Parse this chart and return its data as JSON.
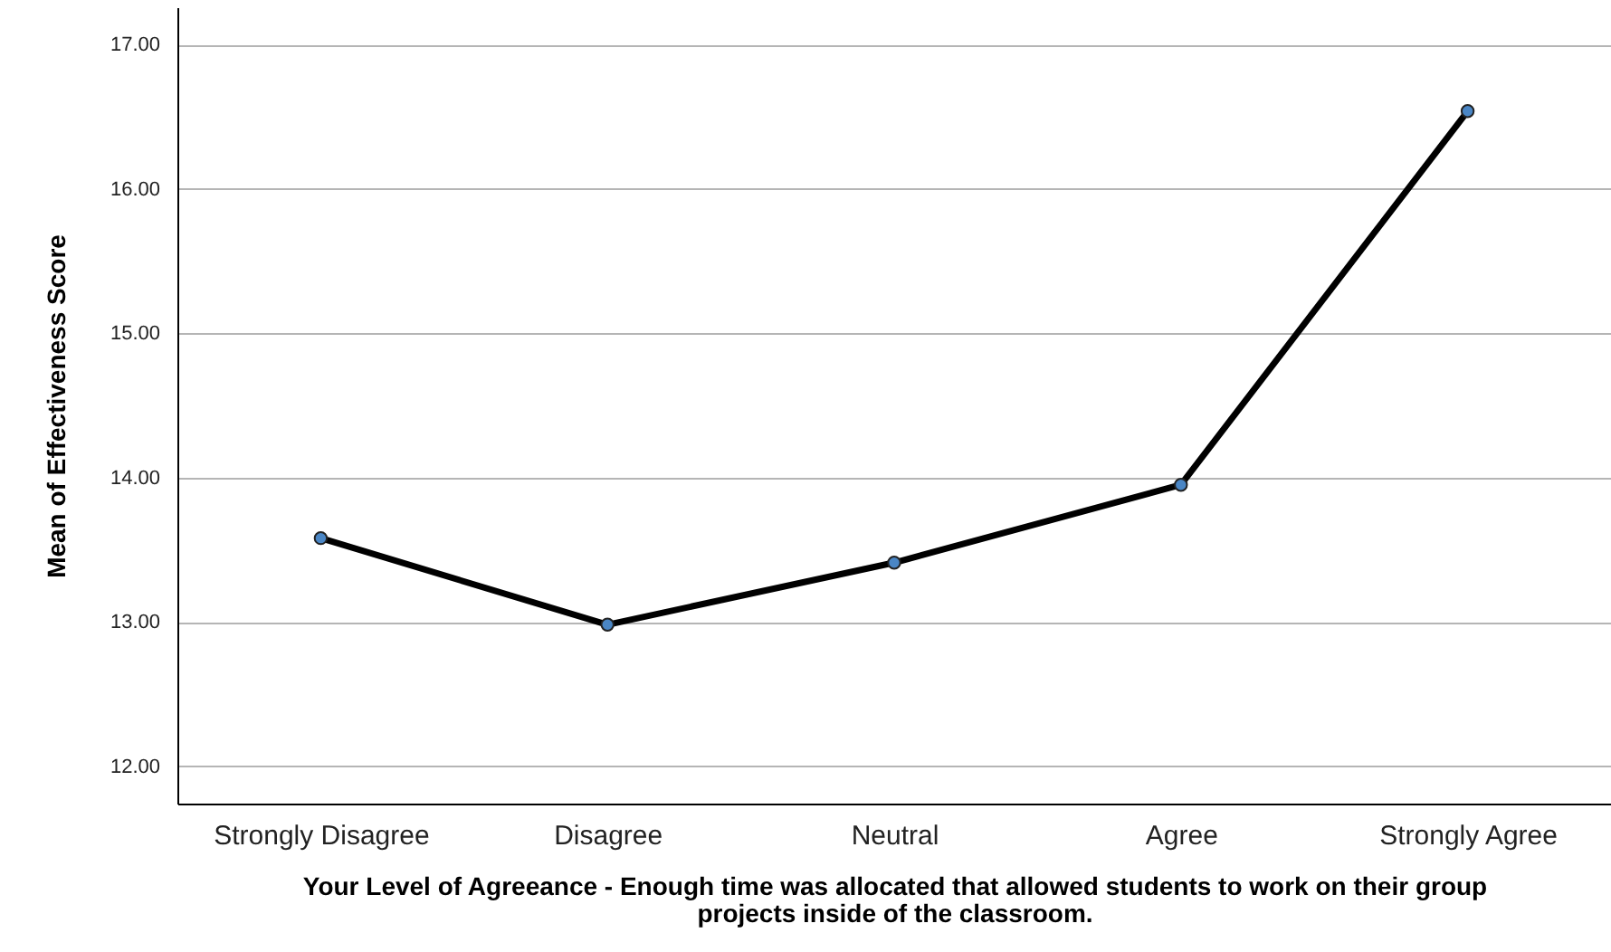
{
  "chart_data": {
    "type": "line",
    "xlabel": "Your Level of Agreeance - Enough time was allocated that allowed students to work on their group projects inside of the classroom.",
    "ylabel": "Mean of Effectiveness Score",
    "categories": [
      "Strongly Disagree",
      "Disagree",
      "Neutral",
      "Agree",
      "Strongly Agree"
    ],
    "series": [
      {
        "color": "#000000",
        "values": [
          13.58,
          12.98,
          13.41,
          13.95,
          16.54
        ]
      }
    ],
    "ylim": [
      11.74,
      17.26
    ],
    "yticks": [
      {
        "value": 12,
        "label": "12.00"
      },
      {
        "value": 13,
        "label": "13.00"
      },
      {
        "value": 14,
        "label": "14.00"
      },
      {
        "value": 15,
        "label": "15.00"
      },
      {
        "value": 16,
        "label": "16.00"
      },
      {
        "value": 17,
        "label": "17.00"
      }
    ],
    "grid": "y",
    "marker": "circle",
    "line_style": "solid"
  }
}
